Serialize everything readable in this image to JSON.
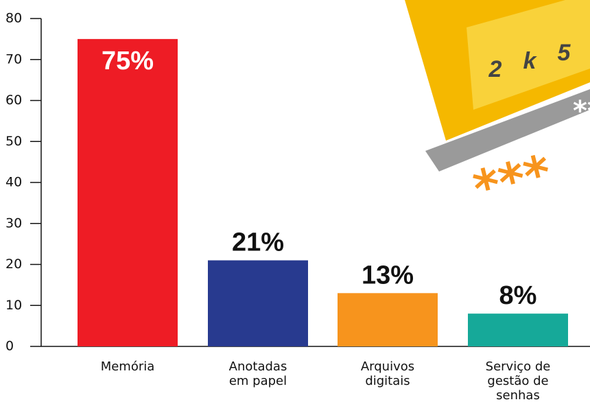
{
  "chart_data": {
    "type": "bar",
    "categories": [
      "Memória",
      "Anotadas em papel",
      "Arquivos digitais",
      "Serviço de gestão de senhas"
    ],
    "values": [
      75,
      21,
      13,
      8
    ],
    "value_labels": [
      "75%",
      "21%",
      "13%",
      "8%"
    ],
    "colors": [
      "#ee1c25",
      "#283a8f",
      "#f7941d",
      "#16a999"
    ],
    "ylim": [
      0,
      80
    ],
    "yticks": [
      0,
      10,
      20,
      30,
      40,
      50,
      60,
      70,
      80
    ],
    "grid": false
  },
  "illustration": {
    "digits": [
      "2",
      "k",
      "5"
    ]
  }
}
